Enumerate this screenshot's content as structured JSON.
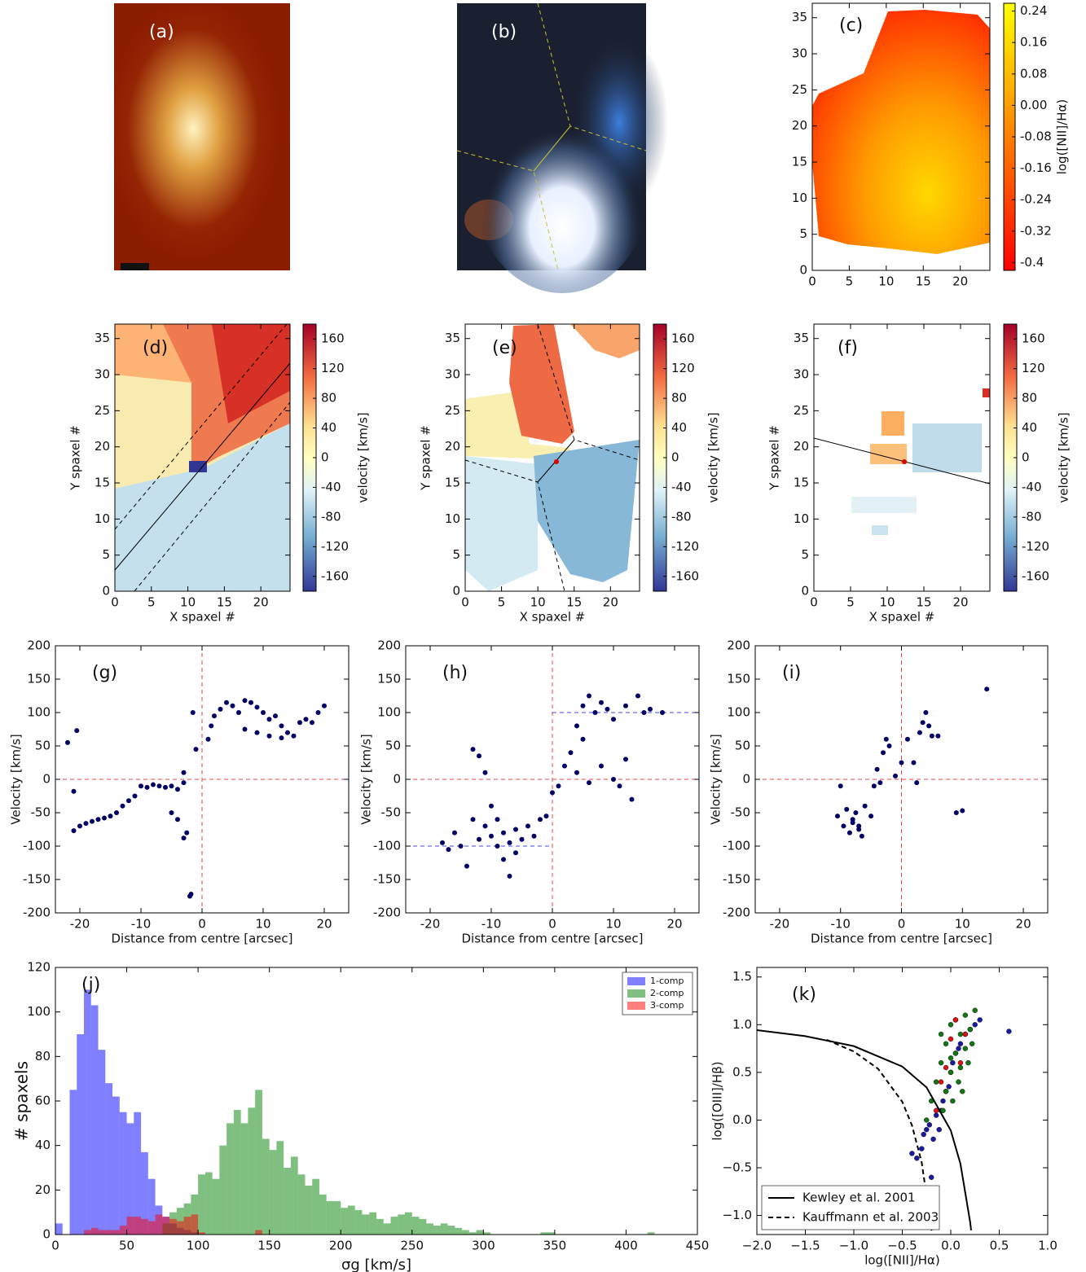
{
  "chart_data": [
    {
      "type": "image",
      "label": "(a)"
    },
    {
      "type": "image",
      "label": "(b)"
    },
    {
      "type": "heatmap",
      "label": "(c)",
      "xlim": [
        0,
        24
      ],
      "ylim": [
        0,
        37
      ],
      "xticks": [
        0,
        5,
        10,
        15,
        20
      ],
      "yticks": [
        0,
        5,
        10,
        15,
        20,
        25,
        30,
        35
      ],
      "colorbar": {
        "label": "log([NII]/Hα)",
        "lim": [
          -0.42,
          0.26
        ],
        "ticks": [
          0.24,
          0.16,
          0.08,
          {
            "value": 0,
            "label": "0.00"
          },
          -0.08,
          -0.16,
          -0.24,
          -0.32,
          -0.4
        ]
      }
    },
    {
      "type": "heatmap",
      "label": "(d)",
      "xlabel": "X spaxel #",
      "ylabel": "Y spaxel #",
      "xlim": [
        0,
        24
      ],
      "ylim": [
        0,
        37
      ],
      "xticks": [
        0,
        5,
        10,
        15,
        20
      ],
      "yticks": [
        0,
        5,
        10,
        15,
        20,
        25,
        30,
        35
      ],
      "colorbar": {
        "label": "velocity [km/s]",
        "lim": [
          -180,
          180
        ],
        "ticks": [
          160,
          120,
          80,
          40,
          0,
          -40,
          -80,
          -120,
          -160
        ]
      }
    },
    {
      "type": "heatmap",
      "label": "(e)",
      "xlabel": "X spaxel #",
      "ylabel": "Y spaxel #",
      "xlim": [
        0,
        24
      ],
      "ylim": [
        0,
        37
      ],
      "xticks": [
        0,
        5,
        10,
        15,
        20
      ],
      "yticks": [
        0,
        5,
        10,
        15,
        20,
        25,
        30,
        35
      ],
      "colorbar": {
        "label": "velocity [km/s]",
        "lim": [
          -180,
          180
        ],
        "ticks": [
          160,
          120,
          80,
          40,
          0,
          -40,
          -80,
          -120,
          -160
        ]
      }
    },
    {
      "type": "heatmap",
      "label": "(f)",
      "xlabel": "X spaxel #",
      "ylabel": "Y spaxel #",
      "xlim": [
        0,
        24
      ],
      "ylim": [
        0,
        37
      ],
      "xticks": [
        0,
        5,
        10,
        15,
        20
      ],
      "yticks": [
        0,
        5,
        10,
        15,
        20,
        25,
        30,
        35
      ],
      "colorbar": {
        "label": "velocity [km/s]",
        "lim": [
          -180,
          180
        ],
        "ticks": [
          160,
          120,
          80,
          40,
          0,
          -40,
          -80,
          -120,
          -160
        ]
      }
    },
    {
      "type": "scatter",
      "label": "(g)",
      "xlabel": "Distance from centre [arcsec]",
      "ylabel": "Velocity [km/s]",
      "xlim": [
        -24,
        24
      ],
      "ylim": [
        -200,
        200
      ],
      "xticks": [
        -20,
        -10,
        0,
        10,
        20
      ],
      "yticks": [
        -200,
        -150,
        -100,
        -50,
        0,
        50,
        100,
        150,
        200
      ],
      "color": "#000066",
      "ref_color": "#ee4444",
      "vline": 0,
      "hline": 0,
      "x": [
        -22,
        -21,
        -20.5,
        -21,
        -20,
        -19,
        -18,
        -17,
        -16,
        -15,
        -14,
        -13,
        -12,
        -11,
        -10,
        -9,
        -8,
        -7,
        -6,
        -5,
        -4,
        -3,
        -3,
        -2.5,
        -2,
        -1.8,
        -5,
        -4,
        -3,
        -1.5,
        -1,
        1,
        1.5,
        2,
        3,
        4,
        5,
        6,
        7,
        8,
        9,
        10,
        11,
        12,
        13,
        14,
        15,
        16,
        17,
        18,
        19,
        20,
        7,
        9,
        11,
        13
      ],
      "y": [
        55,
        -18,
        73,
        -77,
        -70,
        -66,
        -63,
        -60,
        -58,
        -55,
        -50,
        -40,
        -32,
        -25,
        -10,
        -12,
        -8,
        -10,
        -12,
        -10,
        -15,
        -5,
        10,
        -80,
        -175,
        -172,
        -50,
        -60,
        -88,
        100,
        45,
        60,
        80,
        95,
        105,
        115,
        110,
        100,
        118,
        115,
        108,
        100,
        90,
        95,
        80,
        70,
        65,
        85,
        90,
        85,
        100,
        110,
        75,
        70,
        65,
        62
      ]
    },
    {
      "type": "scatter",
      "label": "(h)",
      "xlabel": "Distance from centre [arcsec]",
      "ylabel": "Velocity [km/s]",
      "xlim": [
        -24,
        24
      ],
      "ylim": [
        -200,
        200
      ],
      "xticks": [
        -20,
        -10,
        0,
        10,
        20
      ],
      "yticks": [
        -200,
        -150,
        -100,
        -50,
        0,
        50,
        100,
        150,
        200
      ],
      "color": "#000066",
      "ref_color": "#ee4444",
      "vline": 0,
      "hline": 0,
      "guide_color": "#4444ee",
      "guides": [
        {
          "x": [
            0,
            24
          ],
          "y": [
            100,
            100
          ]
        },
        {
          "x": [
            -24,
            0
          ],
          "y": [
            -100,
            -100
          ]
        }
      ],
      "x": [
        -18,
        -17,
        -16,
        -15,
        -14,
        -13,
        -13,
        -12,
        -12,
        -11,
        -11,
        -10,
        -10,
        -9,
        -9,
        -8,
        -8,
        -7,
        -7,
        -6,
        -6,
        -5,
        -4,
        -3,
        -2,
        -1,
        0,
        1,
        2,
        3,
        4,
        4,
        5,
        5,
        6,
        6,
        7,
        8,
        8,
        9,
        10,
        10,
        11,
        12,
        12,
        13,
        14,
        15,
        16,
        18
      ],
      "y": [
        -95,
        -105,
        -80,
        -100,
        -130,
        -60,
        45,
        -90,
        35,
        -70,
        10,
        -85,
        -40,
        -100,
        -60,
        -120,
        -80,
        -145,
        -95,
        -75,
        -110,
        -90,
        -70,
        -85,
        -60,
        -55,
        -20,
        -10,
        20,
        40,
        80,
        10,
        110,
        60,
        125,
        -5,
        100,
        115,
        20,
        105,
        0,
        90,
        -10,
        110,
        30,
        -30,
        125,
        100,
        105,
        100
      ]
    },
    {
      "type": "scatter",
      "label": "(i)",
      "xlabel": "Distance from centre [arcsec]",
      "ylabel": "Velocity [km/s]",
      "xlim": [
        -24,
        24
      ],
      "ylim": [
        -200,
        200
      ],
      "xticks": [
        -20,
        -10,
        0,
        10,
        20
      ],
      "yticks": [
        -200,
        -150,
        -100,
        -50,
        0,
        50,
        100,
        150,
        200
      ],
      "color": "#000066",
      "ref_color": "#ee4444",
      "vline": 0,
      "hline": 0,
      "x": [
        -10.5,
        -10,
        -9.5,
        -9,
        -8.5,
        -8,
        -8,
        -7.5,
        -7,
        -7,
        -6.5,
        -6,
        -5,
        -4.5,
        -4,
        -3.5,
        -3,
        -2.5,
        -2,
        -1,
        0,
        1,
        2,
        2.5,
        3,
        3.5,
        4,
        4.5,
        5,
        6,
        9,
        10,
        14
      ],
      "y": [
        -55,
        -10,
        -70,
        -45,
        -80,
        -60,
        -65,
        -50,
        -70,
        -75,
        -85,
        -40,
        -55,
        -10,
        15,
        -5,
        40,
        60,
        50,
        5,
        25,
        60,
        25,
        -5,
        70,
        85,
        100,
        80,
        65,
        65,
        -50,
        -47,
        135
      ]
    },
    {
      "type": "histogram",
      "label": "(j)",
      "xlabel": "σg [km/s]",
      "ylabel": "# spaxels",
      "xlim": [
        0,
        450
      ],
      "ylim": [
        0,
        120
      ],
      "xticks": [
        0,
        50,
        100,
        150,
        200,
        250,
        300,
        350,
        400,
        450
      ],
      "yticks": [
        0,
        20,
        40,
        60,
        80,
        100,
        120
      ],
      "legend": "upper right",
      "bins": [
        0,
        5,
        10,
        15,
        20,
        25,
        30,
        35,
        40,
        45,
        50,
        55,
        60,
        65,
        70,
        75,
        80,
        85,
        90,
        95,
        100,
        105,
        110,
        115,
        120,
        125,
        130,
        135,
        140,
        145,
        150,
        155,
        160,
        165,
        170,
        175,
        180,
        185,
        190,
        195,
        200,
        205,
        210,
        215,
        220,
        225,
        230,
        235,
        240,
        245,
        250,
        255,
        260,
        265,
        270,
        275,
        280,
        285,
        290,
        295,
        300,
        305,
        310,
        315,
        320,
        325,
        330,
        335,
        340,
        345,
        350,
        355,
        360,
        365,
        370,
        375,
        380,
        385,
        390,
        395,
        400,
        405,
        410,
        415,
        420
      ],
      "series": [
        {
          "name": "1-comp",
          "color": "#0000ff",
          "values": [
            5,
            0,
            65,
            90,
            110,
            103,
            83,
            68,
            62,
            55,
            50,
            55,
            37,
            25,
            13,
            8,
            5,
            3,
            2,
            1,
            0,
            0,
            0,
            0,
            0,
            0,
            0,
            0,
            0,
            0,
            0,
            0,
            0,
            0,
            0,
            0,
            0,
            0,
            0,
            0,
            0,
            0,
            0,
            0,
            0,
            0,
            0,
            0,
            0,
            0,
            0,
            0,
            0,
            0,
            0,
            0,
            0,
            0,
            0,
            0,
            0,
            0,
            0,
            0,
            0,
            0,
            0,
            0,
            0,
            0,
            0,
            0,
            0,
            0,
            0,
            0,
            0,
            0,
            0,
            0,
            0,
            0,
            0,
            0
          ]
        },
        {
          "name": "2-comp",
          "color": "#008000",
          "values": [
            0,
            0,
            0,
            0,
            0,
            0,
            0,
            0,
            0,
            0,
            0,
            0,
            0,
            0,
            0,
            5,
            10,
            12,
            14,
            18,
            27,
            28,
            25,
            40,
            50,
            56,
            50,
            57,
            65,
            43,
            38,
            42,
            30,
            35,
            27,
            22,
            25,
            18,
            15,
            15,
            12,
            13,
            11,
            9,
            10,
            7,
            5,
            8,
            9,
            10,
            8,
            7,
            5,
            4,
            5,
            4,
            3,
            2,
            1,
            2,
            1,
            0,
            0,
            0,
            0,
            0,
            0,
            0,
            1,
            1,
            0,
            0,
            0,
            0,
            0,
            0,
            0,
            0,
            0,
            0,
            0,
            0,
            0,
            1
          ]
        },
        {
          "name": "3-comp",
          "color": "#ff0000",
          "values": [
            0,
            0,
            0,
            0,
            2,
            3,
            2,
            2,
            2,
            4,
            8,
            8,
            7,
            6,
            9,
            8,
            7,
            6,
            8,
            9,
            1,
            0,
            0,
            0,
            0,
            0,
            0,
            0,
            2,
            0,
            0,
            0,
            0,
            0,
            0,
            0,
            0,
            0,
            0,
            0,
            0,
            0,
            0,
            0,
            0,
            0,
            0,
            0,
            0,
            0,
            0,
            0,
            0,
            0,
            0,
            0,
            0,
            0,
            0,
            0,
            0,
            0,
            0,
            0,
            0,
            0,
            0,
            0,
            0,
            0,
            0,
            0,
            0,
            0,
            0,
            0,
            0,
            0,
            0,
            0,
            0,
            0,
            0,
            0
          ]
        }
      ]
    },
    {
      "type": "bpt",
      "label": "(k)",
      "xlabel": "log([NII]/Hα)",
      "ylabel": "log([OIII]/Hβ)",
      "xlim": [
        -2,
        1
      ],
      "ylim": [
        -1.2,
        1.6
      ],
      "legend": "lower left",
      "xticks": [
        {
          "value": -2,
          "label": "−2.0"
        },
        {
          "value": -1.5,
          "label": "−1.5"
        },
        {
          "value": -1,
          "label": "−1.0"
        },
        {
          "value": -0.5,
          "label": "−0.5"
        },
        {
          "value": 0,
          "label": "0.0"
        },
        0.5,
        {
          "value": 1,
          "label": "1.0"
        }
      ],
      "yticks": [
        {
          "value": -1,
          "label": "−1.0"
        },
        {
          "value": -0.5,
          "label": "−0.5"
        },
        {
          "value": 0,
          "label": "0.0"
        },
        0.5,
        {
          "value": 1,
          "label": "1.0"
        },
        1.5
      ],
      "points": [
        {
          "color": "#1a1aa0",
          "x": [
            -0.4,
            -0.35,
            -0.3,
            -0.28,
            -0.25,
            -0.22,
            -0.2,
            -0.18,
            -0.15,
            -0.12,
            -0.1,
            -0.08,
            -0.05,
            -0.02,
            0,
            0.02,
            0.05,
            0.08,
            0.1,
            0.15,
            0.2,
            0.25,
            0.3,
            0.6,
            -0.25
          ],
          "y": [
            -0.35,
            -0.4,
            -0.3,
            -0.15,
            -0.1,
            -0.05,
            -0.6,
            -0.2,
            0.05,
            -0.1,
            0.1,
            0.2,
            0.3,
            0.35,
            0.5,
            0.6,
            0.7,
            0.75,
            0.8,
            0.9,
            0.95,
            1.0,
            1.05,
            0.93,
            -0.75
          ]
        },
        {
          "color": "#117711",
          "x": [
            -0.2,
            -0.15,
            -0.1,
            -0.1,
            -0.05,
            -0.05,
            0,
            0,
            0.02,
            0.05,
            0.05,
            0.08,
            0.1,
            0.1,
            0.12,
            0.15,
            0.15,
            0.18,
            0.2,
            0.22,
            -0.25,
            -0.08,
            0.0,
            0.25
          ],
          "y": [
            0.2,
            0.4,
            0.6,
            0.9,
            0.3,
            0.8,
            0.5,
            1.0,
            0.2,
            0.7,
            1.05,
            0.4,
            0.9,
            0.55,
            0.3,
            0.75,
            1.1,
            0.6,
            0.95,
            0.8,
            0.0,
            0.1,
            0.65,
            1.15
          ]
        },
        {
          "color": "#dd1111",
          "x": [
            -0.1,
            -0.05,
            0,
            0.05,
            0.1,
            -0.15,
            0.15
          ],
          "y": [
            0.4,
            0.55,
            0.85,
            1.05,
            0.6,
            0.1,
            0.9
          ]
        }
      ],
      "series": [
        {
          "name": "Kewley et al. 2001",
          "color": "#000000",
          "dashed": false,
          "x": [
            -2,
            -1.5,
            -1,
            -0.5,
            -0.25,
            0,
            0.1,
            0.2,
            0.21
          ],
          "y": [
            0.943,
            0.88,
            0.775,
            0.561,
            0.343,
            -0.108,
            -0.459,
            -1.069,
            -1.156
          ]
        },
        {
          "name": "Kauffmann et al. 2003",
          "color": "#000000",
          "dashed": true,
          "x": [
            -1.28,
            -1,
            -0.75,
            -0.5,
            -0.4,
            -0.3,
            -0.2,
            -0.195
          ],
          "y": [
            0.841,
            0.719,
            0.538,
            0.191,
            -0.056,
            -0.443,
            -1.14,
            -1.19
          ]
        }
      ]
    }
  ]
}
